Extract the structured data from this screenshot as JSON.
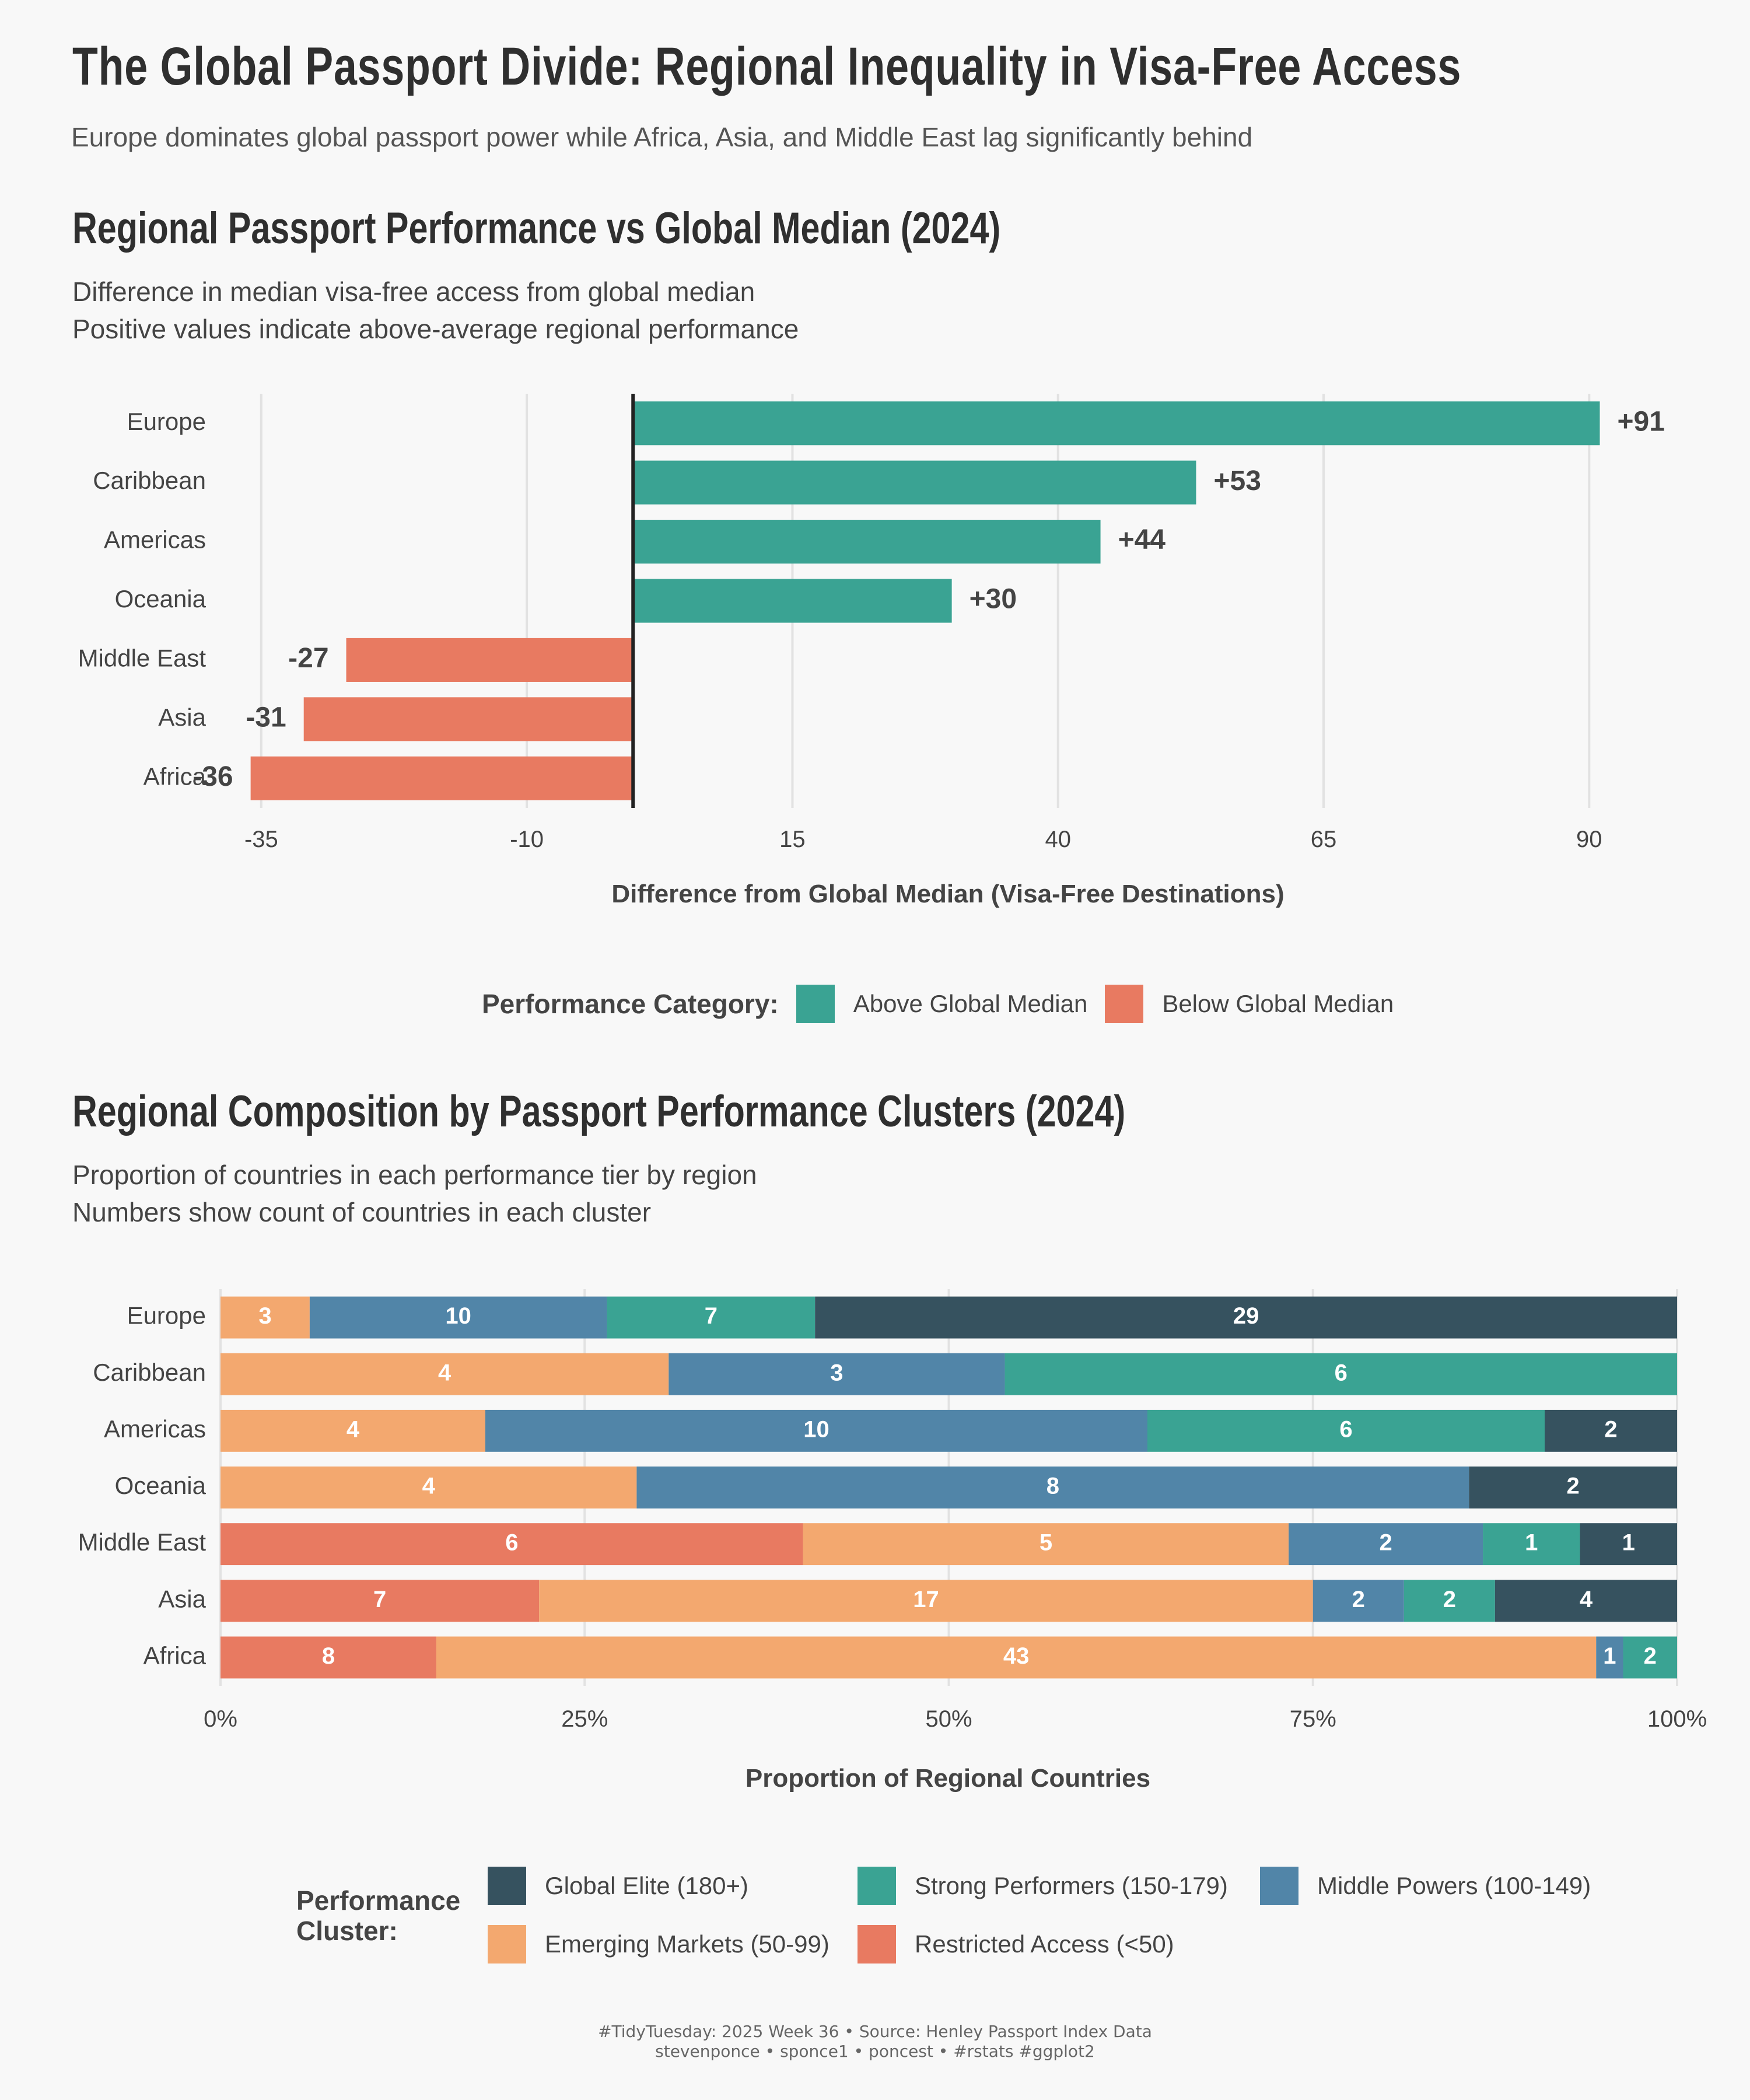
{
  "title": "The Global Passport Divide: Regional Inequality in Visa-Free Access",
  "subtitle": "Europe dominates global passport power while Africa, Asia, and Middle East lag significantly behind",
  "colors": {
    "above": "#3aa393",
    "below": "#e87a61",
    "global_elite": "#36525f",
    "strong": "#3aa393",
    "middle": "#5185a8",
    "emerging": "#f3a86f",
    "restricted": "#e87a61"
  },
  "chart1": {
    "title": "Regional Passport Performance vs Global Median (2024)",
    "subtitle_lines": [
      "Difference in median visa-free access from global median",
      "Positive values indicate above-average regional performance"
    ],
    "xlabel": "Difference from Global Median (Visa-Free Destinations)",
    "legend_title": "Performance Category:",
    "legend_items": [
      "Above Global Median",
      "Below Global Median"
    ]
  },
  "chart2": {
    "title": "Regional Composition by Passport Performance Clusters (2024)",
    "subtitle_lines": [
      "Proportion of countries in each performance tier by region",
      "Numbers show count of countries in each cluster"
    ],
    "xlabel": "Proportion of Regional Countries",
    "legend_title_lines": [
      "Performance",
      "Cluster:"
    ],
    "legend_items": [
      "Global Elite (180+)",
      "Strong Performers (150-179)",
      "Middle Powers (100-149)",
      "Emerging Markets (50-99)",
      "Restricted Access (<50)"
    ]
  },
  "chart_data": [
    {
      "type": "bar",
      "orientation": "horizontal",
      "title": "Regional Passport Performance vs Global Median (2024)",
      "xlabel": "Difference from Global Median (Visa-Free Destinations)",
      "categories": [
        "Europe",
        "Caribbean",
        "Americas",
        "Oceania",
        "Middle East",
        "Asia",
        "Africa"
      ],
      "values": [
        91,
        53,
        44,
        30,
        -27,
        -31,
        -36
      ],
      "labels": [
        "+91",
        "+53",
        "+44",
        "+30",
        "-27",
        "-31",
        "-36"
      ],
      "xlim": [
        -39,
        98
      ],
      "xticks": [
        -35,
        -10,
        15,
        40,
        65,
        90
      ],
      "grid": true,
      "legend_position": "bottom"
    },
    {
      "type": "bar",
      "orientation": "horizontal",
      "stacked": "percent",
      "title": "Regional Composition by Passport Performance Clusters (2024)",
      "xlabel": "Proportion of Regional Countries",
      "categories": [
        "Europe",
        "Caribbean",
        "Americas",
        "Oceania",
        "Middle East",
        "Asia",
        "Africa"
      ],
      "series": [
        {
          "name": "Restricted Access (<50)",
          "values": [
            0,
            0,
            0,
            0,
            6,
            7,
            8
          ]
        },
        {
          "name": "Emerging Markets (50-99)",
          "values": [
            3,
            4,
            4,
            4,
            5,
            17,
            43
          ]
        },
        {
          "name": "Middle Powers (100-149)",
          "values": [
            10,
            3,
            10,
            8,
            2,
            2,
            1
          ]
        },
        {
          "name": "Strong Performers (150-179)",
          "values": [
            7,
            6,
            6,
            0,
            1,
            2,
            2
          ]
        },
        {
          "name": "Global Elite (180+)",
          "values": [
            29,
            0,
            2,
            2,
            1,
            4,
            0
          ]
        }
      ],
      "xticks": [
        "0%",
        "25%",
        "50%",
        "75%",
        "100%"
      ],
      "grid": true,
      "legend_position": "bottom"
    }
  ],
  "caption": {
    "line1": "#TidyTuesday: 2025 Week 36 • Source: Henley Passport Index Data",
    "line2": "stevenponce • sponce1 • poncest • #rstats #ggplot2"
  }
}
